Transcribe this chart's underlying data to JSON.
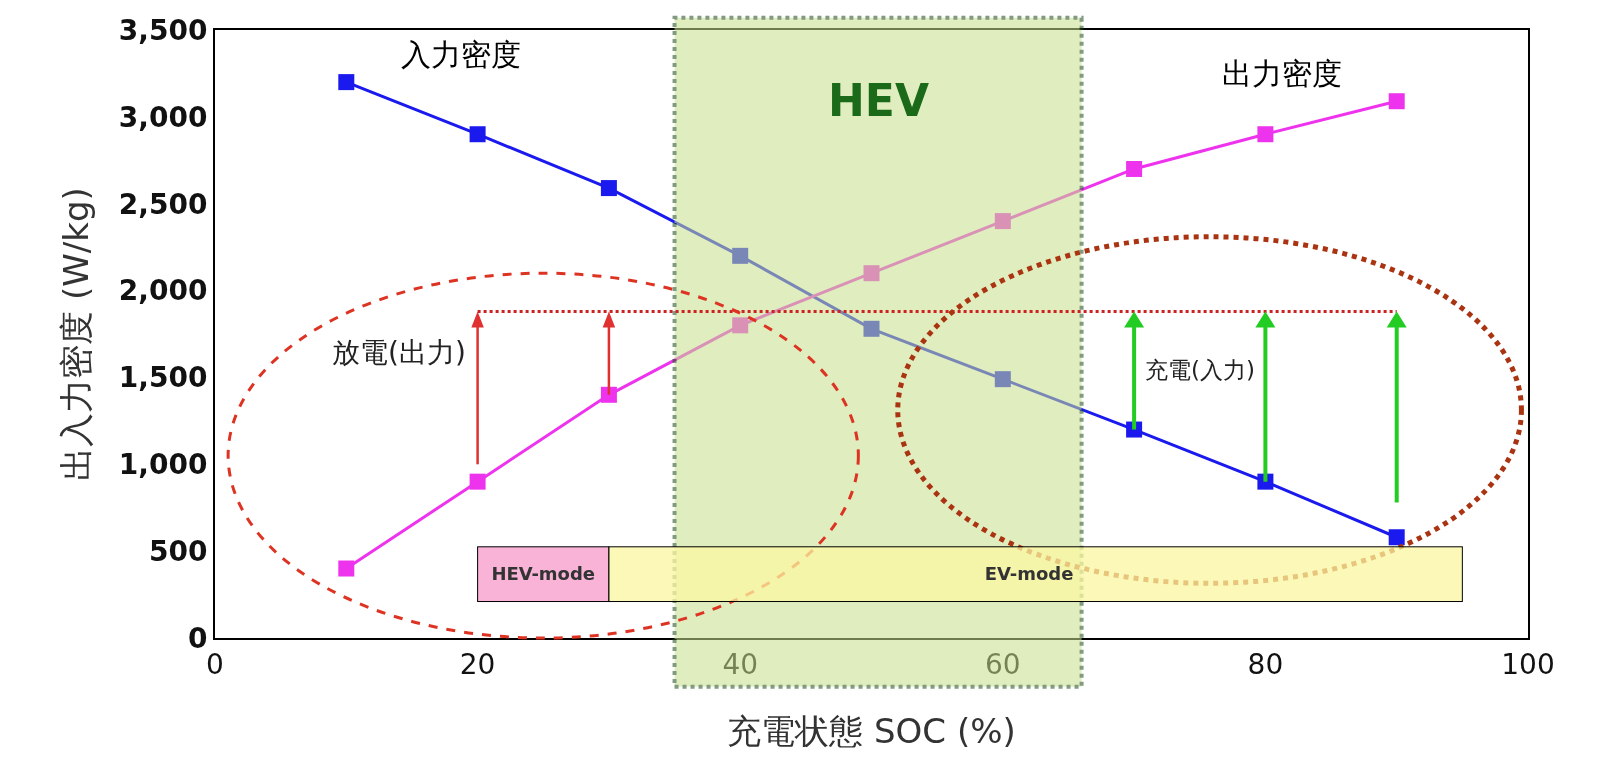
{
  "chart_data": {
    "type": "line",
    "xlabel": "充電状態 SOC (%)",
    "ylabel": "出入力密度 (W/kg)",
    "x": [
      10,
      20,
      30,
      40,
      50,
      60,
      70,
      80,
      90
    ],
    "series": [
      {
        "name": "入力密度",
        "color": "#1a1aee",
        "values": [
          3200,
          2900,
          2590,
          2200,
          1780,
          1490,
          1200,
          900,
          580
        ]
      },
      {
        "name": "出力密度",
        "color": "#ee33ee",
        "values": [
          400,
          900,
          1400,
          1800,
          2100,
          2400,
          2700,
          2900,
          3090
        ]
      }
    ],
    "xlim": [
      0,
      100
    ],
    "xticks": [
      0,
      20,
      40,
      60,
      80,
      100
    ],
    "ylim": [
      0,
      3500
    ],
    "yticks": [
      0,
      {
        "value": 500,
        "label": "500"
      },
      {
        "value": 1000,
        "label": "1,000"
      },
      {
        "value": 1500,
        "label": "1,500"
      },
      {
        "value": 2000,
        "label": "2,000"
      },
      {
        "value": 2500,
        "label": "2,500"
      },
      {
        "value": 3000,
        "label": "3,000"
      },
      {
        "value": 3500,
        "label": "3,500"
      }
    ],
    "bands": [
      {
        "axis": "x",
        "from": 35,
        "to": 66,
        "label": "HEV",
        "color": "#c8e08a"
      }
    ],
    "ref_lines": [
      {
        "axis": "y",
        "value": 1880,
        "color": "#cc2222",
        "line_style": "dotted"
      }
    ],
    "annotations": [
      "放電(出力)",
      "充電(入力)",
      "HEV-mode",
      "EV-mode"
    ],
    "grid": false,
    "legend": false,
    "marker": "square",
    "line_style": "solid"
  }
}
